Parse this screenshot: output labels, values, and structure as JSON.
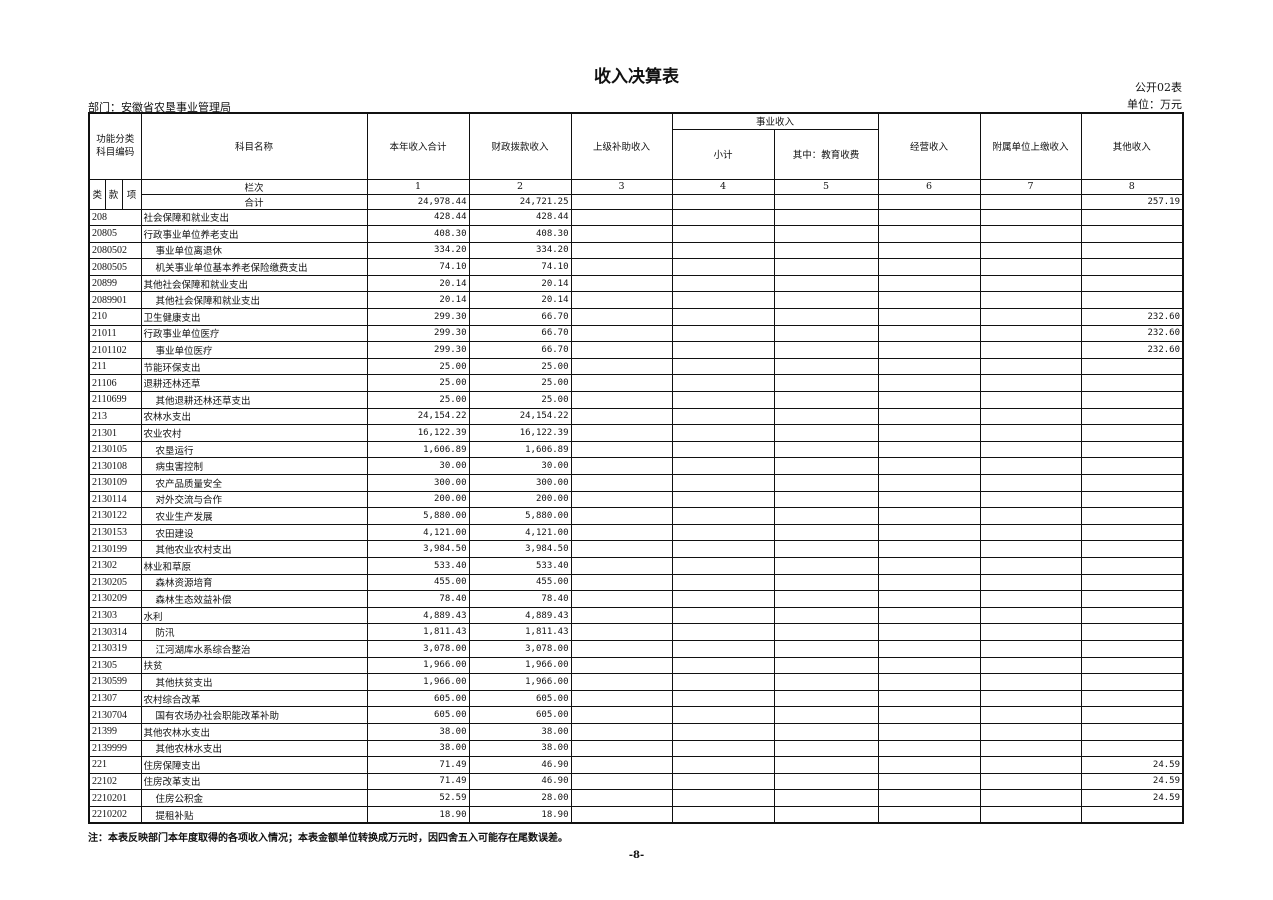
{
  "title": "收入决算表",
  "form_no": "公开02表",
  "unit": "单位：万元",
  "department": "部门：安徽省农垦事业管理局",
  "headers": {
    "code_group": "功能分类科目编码",
    "code_sub": [
      "类",
      "款",
      "项"
    ],
    "name": "科目名称",
    "total": "本年收入合计",
    "fiscal": "财政拨款收入",
    "superior": "上级补助收入",
    "business": "事业收入",
    "business_subtotal": "小计",
    "business_education": "其中：教育收费",
    "operating": "经营收入",
    "affiliated": "附属单位上缴收入",
    "other": "其他收入",
    "column_index_label": "栏次",
    "column_indices": [
      "1",
      "2",
      "3",
      "4",
      "5",
      "6",
      "7",
      "8"
    ]
  },
  "total_row": {
    "label": "合计",
    "values": [
      "24,978.44",
      "24,721.25",
      "",
      "",
      "",
      "",
      "",
      "257.19"
    ]
  },
  "rows": [
    {
      "code": "208",
      "name": "社会保障和就业支出",
      "level": 1,
      "values": [
        "428.44",
        "428.44",
        "",
        "",
        "",
        "",
        "",
        ""
      ]
    },
    {
      "code": "20805",
      "name": "行政事业单位养老支出",
      "level": 2,
      "values": [
        "408.30",
        "408.30",
        "",
        "",
        "",
        "",
        "",
        ""
      ]
    },
    {
      "code": "2080502",
      "name": "事业单位离退休",
      "level": 3,
      "values": [
        "334.20",
        "334.20",
        "",
        "",
        "",
        "",
        "",
        ""
      ]
    },
    {
      "code": "2080505",
      "name": "机关事业单位基本养老保险缴费支出",
      "level": 3,
      "values": [
        "74.10",
        "74.10",
        "",
        "",
        "",
        "",
        "",
        ""
      ]
    },
    {
      "code": "20899",
      "name": "其他社会保障和就业支出",
      "level": 2,
      "values": [
        "20.14",
        "20.14",
        "",
        "",
        "",
        "",
        "",
        ""
      ]
    },
    {
      "code": "2089901",
      "name": "其他社会保障和就业支出",
      "level": 3,
      "values": [
        "20.14",
        "20.14",
        "",
        "",
        "",
        "",
        "",
        ""
      ]
    },
    {
      "code": "210",
      "name": "卫生健康支出",
      "level": 1,
      "values": [
        "299.30",
        "66.70",
        "",
        "",
        "",
        "",
        "",
        "232.60"
      ]
    },
    {
      "code": "21011",
      "name": "行政事业单位医疗",
      "level": 2,
      "values": [
        "299.30",
        "66.70",
        "",
        "",
        "",
        "",
        "",
        "232.60"
      ]
    },
    {
      "code": "2101102",
      "name": "事业单位医疗",
      "level": 3,
      "values": [
        "299.30",
        "66.70",
        "",
        "",
        "",
        "",
        "",
        "232.60"
      ]
    },
    {
      "code": "211",
      "name": "节能环保支出",
      "level": 1,
      "values": [
        "25.00",
        "25.00",
        "",
        "",
        "",
        "",
        "",
        ""
      ]
    },
    {
      "code": "21106",
      "name": "退耕还林还草",
      "level": 2,
      "values": [
        "25.00",
        "25.00",
        "",
        "",
        "",
        "",
        "",
        ""
      ]
    },
    {
      "code": "2110699",
      "name": "其他退耕还林还草支出",
      "level": 3,
      "values": [
        "25.00",
        "25.00",
        "",
        "",
        "",
        "",
        "",
        ""
      ]
    },
    {
      "code": "213",
      "name": "农林水支出",
      "level": 1,
      "values": [
        "24,154.22",
        "24,154.22",
        "",
        "",
        "",
        "",
        "",
        ""
      ]
    },
    {
      "code": "21301",
      "name": "农业农村",
      "level": 2,
      "values": [
        "16,122.39",
        "16,122.39",
        "",
        "",
        "",
        "",
        "",
        ""
      ]
    },
    {
      "code": "2130105",
      "name": "农垦运行",
      "level": 3,
      "values": [
        "1,606.89",
        "1,606.89",
        "",
        "",
        "",
        "",
        "",
        ""
      ]
    },
    {
      "code": "2130108",
      "name": "病虫害控制",
      "level": 3,
      "values": [
        "30.00",
        "30.00",
        "",
        "",
        "",
        "",
        "",
        ""
      ]
    },
    {
      "code": "2130109",
      "name": "农产品质量安全",
      "level": 3,
      "values": [
        "300.00",
        "300.00",
        "",
        "",
        "",
        "",
        "",
        ""
      ]
    },
    {
      "code": "2130114",
      "name": "对外交流与合作",
      "level": 3,
      "values": [
        "200.00",
        "200.00",
        "",
        "",
        "",
        "",
        "",
        ""
      ]
    },
    {
      "code": "2130122",
      "name": "农业生产发展",
      "level": 3,
      "values": [
        "5,880.00",
        "5,880.00",
        "",
        "",
        "",
        "",
        "",
        ""
      ]
    },
    {
      "code": "2130153",
      "name": "农田建设",
      "level": 3,
      "values": [
        "4,121.00",
        "4,121.00",
        "",
        "",
        "",
        "",
        "",
        ""
      ]
    },
    {
      "code": "2130199",
      "name": "其他农业农村支出",
      "level": 3,
      "values": [
        "3,984.50",
        "3,984.50",
        "",
        "",
        "",
        "",
        "",
        ""
      ]
    },
    {
      "code": "21302",
      "name": "林业和草原",
      "level": 2,
      "values": [
        "533.40",
        "533.40",
        "",
        "",
        "",
        "",
        "",
        ""
      ]
    },
    {
      "code": "2130205",
      "name": "森林资源培育",
      "level": 3,
      "values": [
        "455.00",
        "455.00",
        "",
        "",
        "",
        "",
        "",
        ""
      ]
    },
    {
      "code": "2130209",
      "name": "森林生态效益补偿",
      "level": 3,
      "values": [
        "78.40",
        "78.40",
        "",
        "",
        "",
        "",
        "",
        ""
      ]
    },
    {
      "code": "21303",
      "name": "水利",
      "level": 2,
      "values": [
        "4,889.43",
        "4,889.43",
        "",
        "",
        "",
        "",
        "",
        ""
      ]
    },
    {
      "code": "2130314",
      "name": "防汛",
      "level": 3,
      "values": [
        "1,811.43",
        "1,811.43",
        "",
        "",
        "",
        "",
        "",
        ""
      ]
    },
    {
      "code": "2130319",
      "name": "江河湖库水系综合整治",
      "level": 3,
      "values": [
        "3,078.00",
        "3,078.00",
        "",
        "",
        "",
        "",
        "",
        ""
      ]
    },
    {
      "code": "21305",
      "name": "扶贫",
      "level": 2,
      "values": [
        "1,966.00",
        "1,966.00",
        "",
        "",
        "",
        "",
        "",
        ""
      ]
    },
    {
      "code": "2130599",
      "name": "其他扶贫支出",
      "level": 3,
      "values": [
        "1,966.00",
        "1,966.00",
        "",
        "",
        "",
        "",
        "",
        ""
      ]
    },
    {
      "code": "21307",
      "name": "农村综合改革",
      "level": 2,
      "values": [
        "605.00",
        "605.00",
        "",
        "",
        "",
        "",
        "",
        ""
      ]
    },
    {
      "code": "2130704",
      "name": "国有农场办社会职能改革补助",
      "level": 3,
      "values": [
        "605.00",
        "605.00",
        "",
        "",
        "",
        "",
        "",
        ""
      ]
    },
    {
      "code": "21399",
      "name": "其他农林水支出",
      "level": 2,
      "values": [
        "38.00",
        "38.00",
        "",
        "",
        "",
        "",
        "",
        ""
      ]
    },
    {
      "code": "2139999",
      "name": "其他农林水支出",
      "level": 3,
      "values": [
        "38.00",
        "38.00",
        "",
        "",
        "",
        "",
        "",
        ""
      ]
    },
    {
      "code": "221",
      "name": "住房保障支出",
      "level": 1,
      "values": [
        "71.49",
        "46.90",
        "",
        "",
        "",
        "",
        "",
        "24.59"
      ]
    },
    {
      "code": "22102",
      "name": "住房改革支出",
      "level": 2,
      "values": [
        "71.49",
        "46.90",
        "",
        "",
        "",
        "",
        "",
        "24.59"
      ]
    },
    {
      "code": "2210201",
      "name": "住房公积金",
      "level": 3,
      "values": [
        "52.59",
        "28.00",
        "",
        "",
        "",
        "",
        "",
        "24.59"
      ]
    },
    {
      "code": "2210202",
      "name": "提租补贴",
      "level": 3,
      "values": [
        "18.90",
        "18.90",
        "",
        "",
        "",
        "",
        "",
        ""
      ]
    }
  ],
  "note": "注：本表反映部门本年度取得的各项收入情况；本表金额单位转换成万元时，因四舍五入可能存在尾数误差。",
  "page_number": "-8-"
}
